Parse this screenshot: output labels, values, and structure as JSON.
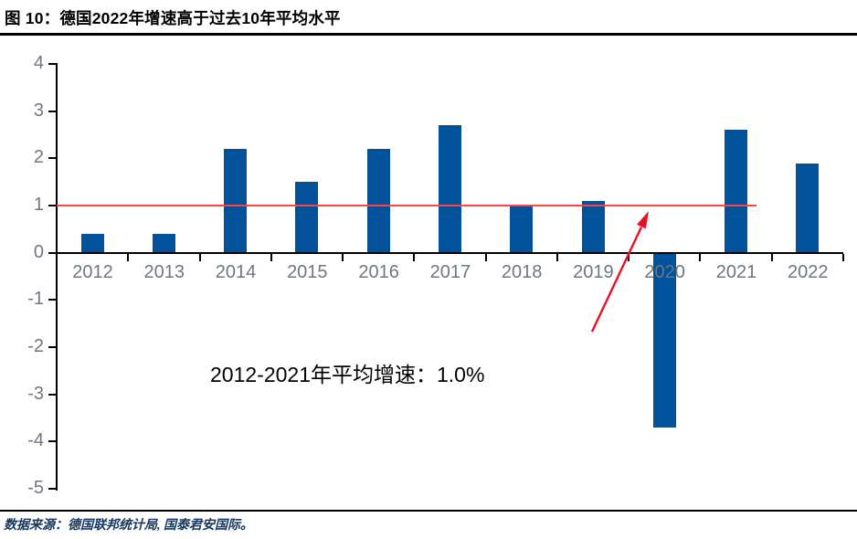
{
  "header": {
    "title": "图 10：德国2022年增速高于过去10年平均水平"
  },
  "footer": {
    "source": "数据来源：德国联邦统计局, 国泰君安国际。"
  },
  "chart_data": {
    "type": "bar",
    "categories": [
      "2012",
      "2013",
      "2014",
      "2015",
      "2016",
      "2017",
      "2018",
      "2019",
      "2020",
      "2021",
      "2022"
    ],
    "values": [
      0.4,
      0.4,
      2.2,
      1.5,
      2.2,
      2.7,
      1.0,
      1.1,
      -3.7,
      2.6,
      1.9
    ],
    "title": "",
    "xlabel": "",
    "ylabel": "",
    "ylim": [
      -5,
      4
    ],
    "ytick_step": 1,
    "yticks": [
      4,
      3,
      2,
      1,
      0,
      -1,
      -2,
      -3,
      -4,
      -5
    ],
    "grid": false,
    "legend": null,
    "bar_color": "#02519B",
    "axis_color": "#000000",
    "tick_label_color": "#70767F",
    "ref_line": {
      "value": 1.0,
      "color": "#FF4141"
    },
    "annotation": {
      "text": "2012-2021年平均增速：1.0%",
      "color": "#000000"
    },
    "arrow": {
      "color": "#E81123",
      "points_to": "ref-line"
    }
  }
}
